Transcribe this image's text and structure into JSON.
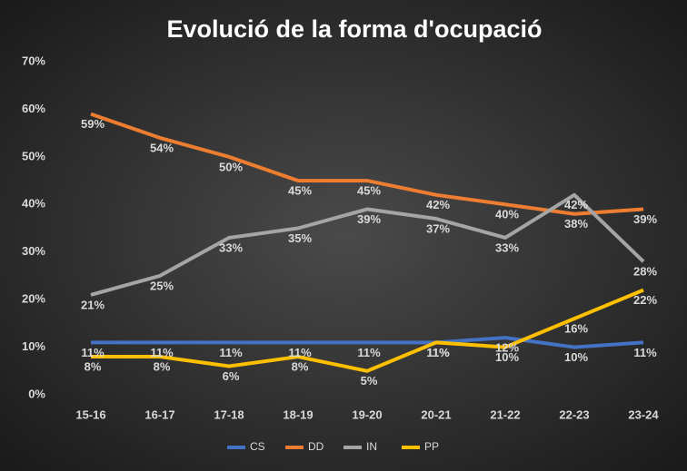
{
  "chart_data": {
    "type": "line",
    "title": "Evolució de la forma d'ocupació",
    "categories": [
      "15-16",
      "16-17",
      "17-18",
      "18-19",
      "19-20",
      "20-21",
      "21-22",
      "22-23",
      "23-24"
    ],
    "series": [
      {
        "name": "CS",
        "color": "#4472c4",
        "values": [
          11,
          11,
          11,
          11,
          11,
          11,
          12,
          10,
          11
        ],
        "value_labels": [
          "11%",
          "11%",
          "11%",
          "11%",
          "11%",
          "11%",
          "12%",
          "10%",
          "11%"
        ]
      },
      {
        "name": "DD",
        "color": "#ed7d31",
        "values": [
          59,
          54,
          50,
          45,
          45,
          42,
          40,
          38,
          39
        ],
        "value_labels": [
          "59%",
          "54%",
          "50%",
          "45%",
          "45%",
          "42%",
          "40%",
          "38%",
          "39%"
        ]
      },
      {
        "name": "IN",
        "color": "#a5a5a5",
        "values": [
          21,
          25,
          33,
          35,
          39,
          37,
          33,
          42,
          28
        ],
        "value_labels": [
          "21%",
          "25%",
          "33%",
          "35%",
          "39%",
          "37%",
          "33%",
          "42%",
          "28%"
        ]
      },
      {
        "name": "PP",
        "color": "#ffc000",
        "values": [
          8,
          8,
          6,
          8,
          5,
          11,
          10,
          16,
          22
        ],
        "value_labels": [
          "8%",
          "8%",
          "6%",
          "8%",
          "5%",
          "11%",
          "10%",
          "16%",
          "22%"
        ]
      }
    ],
    "ylim": [
      0,
      70
    ],
    "yticks": [
      {
        "value": 0,
        "label": "0%"
      },
      {
        "value": 10,
        "label": "10%"
      },
      {
        "value": 20,
        "label": "20%"
      },
      {
        "value": 30,
        "label": "30%"
      },
      {
        "value": 40,
        "label": "40%"
      },
      {
        "value": 50,
        "label": "50%"
      },
      {
        "value": 60,
        "label": "60%"
      },
      {
        "value": 70,
        "label": "70%"
      }
    ],
    "legend": "bottom"
  }
}
